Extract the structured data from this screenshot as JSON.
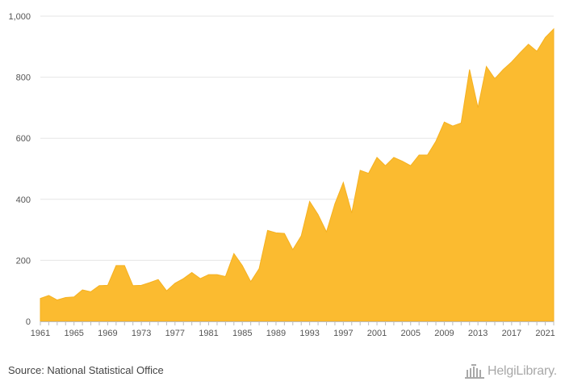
{
  "chart_data": {
    "type": "area",
    "x": [
      1961,
      1962,
      1963,
      1964,
      1965,
      1966,
      1967,
      1968,
      1969,
      1970,
      1971,
      1972,
      1973,
      1974,
      1975,
      1976,
      1977,
      1978,
      1979,
      1980,
      1981,
      1982,
      1983,
      1984,
      1985,
      1986,
      1987,
      1988,
      1989,
      1990,
      1991,
      1992,
      1993,
      1994,
      1995,
      1996,
      1997,
      1998,
      1999,
      2000,
      2001,
      2002,
      2003,
      2004,
      2005,
      2006,
      2007,
      2008,
      2009,
      2010,
      2011,
      2012,
      2013,
      2014,
      2015,
      2016,
      2017,
      2018,
      2019,
      2020,
      2021,
      2022
    ],
    "series": [
      {
        "values": [
          75,
          85,
          70,
          78,
          80,
          103,
          97,
          117,
          118,
          183,
          183,
          117,
          118,
          127,
          137,
          100,
          125,
          140,
          160,
          140,
          153,
          153,
          147,
          222,
          183,
          130,
          173,
          298,
          290,
          288,
          235,
          280,
          393,
          350,
          293,
          385,
          455,
          355,
          495,
          485,
          537,
          510,
          537,
          525,
          510,
          545,
          545,
          590,
          653,
          640,
          650,
          825,
          700,
          835,
          795,
          825,
          850,
          880,
          908,
          885,
          930,
          958
        ]
      }
    ],
    "xticks": [
      "1961",
      "1965",
      "1969",
      "1973",
      "1977",
      "1981",
      "1985",
      "1989",
      "1993",
      "1997",
      "2001",
      "2005",
      "2009",
      "2013",
      "2017",
      "2021"
    ],
    "yticks": [
      "0",
      "200",
      "400",
      "600",
      "800",
      "1,000"
    ],
    "ylim": [
      0,
      1000
    ],
    "grid": true,
    "title": "",
    "xlabel": "",
    "ylabel": "",
    "color": "#fbbb30"
  },
  "footer": {
    "source": "Source: National Statistical Office",
    "brand": "HelgiLibrary."
  }
}
